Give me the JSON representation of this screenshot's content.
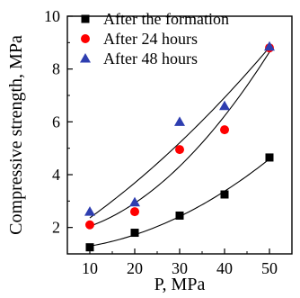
{
  "chart_data": {
    "type": "scatter",
    "title": "",
    "xlabel": "P, MPa",
    "ylabel": "Compressive strength, MPa",
    "xlim": [
      5,
      55
    ],
    "ylim": [
      1,
      10
    ],
    "xticks": [
      10,
      20,
      30,
      40,
      50
    ],
    "yticks": [
      2,
      4,
      6,
      8,
      10
    ],
    "grid": false,
    "legend_position": "top-left",
    "series": [
      {
        "name": "After the formation",
        "marker": "square",
        "color": "#000000",
        "x": [
          10,
          20,
          30,
          40,
          50
        ],
        "y": [
          1.25,
          1.8,
          2.45,
          3.25,
          4.65
        ],
        "fit": "curve"
      },
      {
        "name": "After 24 hours",
        "marker": "circle",
        "color": "#ff0000",
        "x": [
          10,
          20,
          30,
          40,
          50
        ],
        "y": [
          2.1,
          2.6,
          4.95,
          5.7,
          8.8
        ],
        "fit": "curve"
      },
      {
        "name": "After 48 hours",
        "marker": "triangle",
        "color": "#2e3eb0",
        "x": [
          10,
          20,
          30,
          40,
          50
        ],
        "y": [
          2.6,
          2.95,
          6.0,
          6.6,
          8.85
        ],
        "fit": "curve"
      }
    ]
  }
}
